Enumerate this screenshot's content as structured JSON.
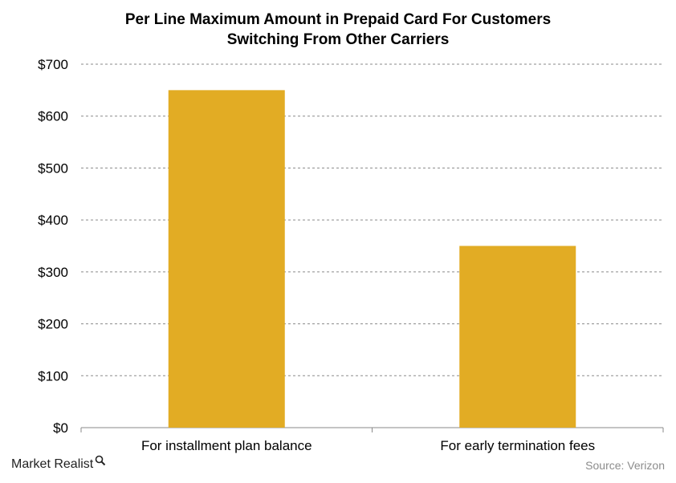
{
  "chart_data": {
    "type": "bar",
    "title_lines": [
      "Per Line Maximum Amount in Prepaid Card For Customers",
      "Switching From Other Carriers"
    ],
    "categories": [
      "For installment plan balance",
      "For early termination fees"
    ],
    "values": [
      650,
      350
    ],
    "ylim": [
      0,
      700
    ],
    "yticks": [
      0,
      100,
      200,
      300,
      400,
      500,
      600,
      700
    ],
    "ytick_labels": [
      "$0",
      "$100",
      "$200",
      "$300",
      "$400",
      "$500",
      "$600",
      "$700"
    ],
    "xlabel": "",
    "ylabel": "",
    "grid": "horizontal dashed",
    "legend": "none",
    "bar_color": "#E2AC24"
  },
  "footer": {
    "brand": "Market Realist",
    "source": "Source: Verizon"
  }
}
